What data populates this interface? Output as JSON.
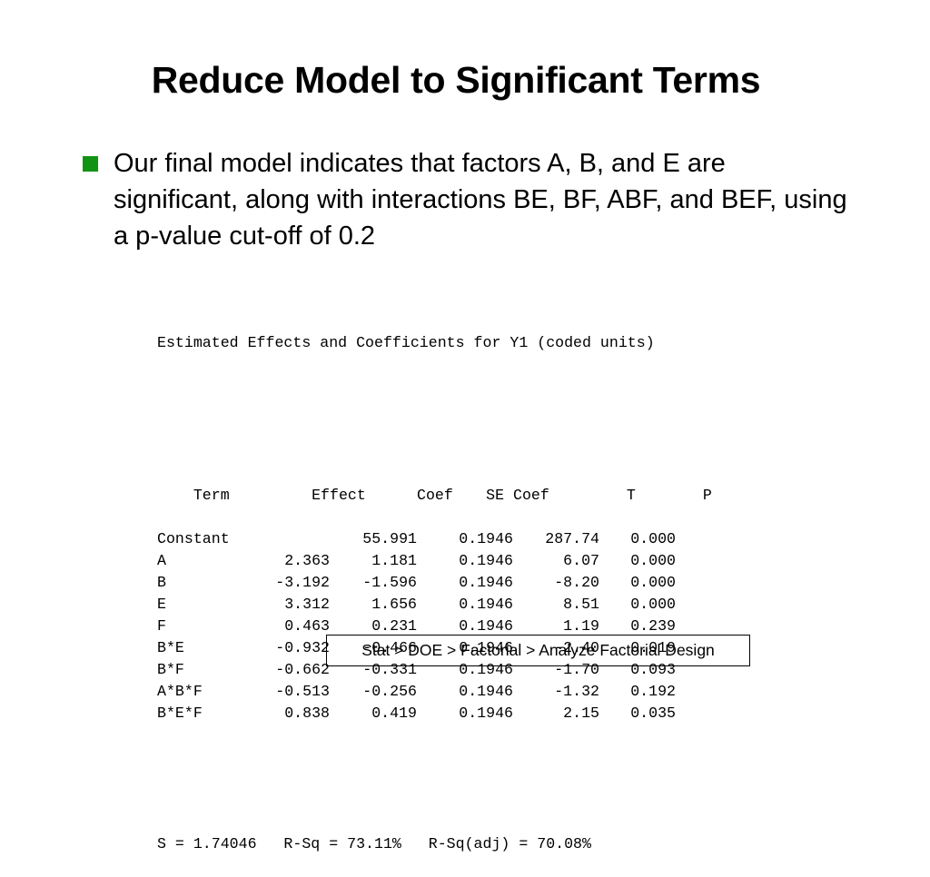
{
  "slide": {
    "title": "Reduce Model to Significant Terms",
    "bullet": "Our final model indicates that factors A, B, and E are significant, along with interactions BE, BF, ABF, and BEF, using a p-value cut-off of 0.2"
  },
  "output": {
    "heading": "Estimated Effects and Coefficients for Y1 (coded units)",
    "columns": {
      "term": "Term",
      "effect": "Effect",
      "coef": "Coef",
      "se_coef": "SE Coef",
      "t": "T",
      "p": "P"
    },
    "rows": [
      {
        "term": "Constant",
        "effect": "",
        "coef": "55.991",
        "se_coef": "0.1946",
        "t": "287.74",
        "p": "0.000"
      },
      {
        "term": "A",
        "effect": "2.363",
        "coef": "1.181",
        "se_coef": "0.1946",
        "t": "6.07",
        "p": "0.000"
      },
      {
        "term": "B",
        "effect": "-3.192",
        "coef": "-1.596",
        "se_coef": "0.1946",
        "t": "-8.20",
        "p": "0.000"
      },
      {
        "term": "E",
        "effect": "3.312",
        "coef": "1.656",
        "se_coef": "0.1946",
        "t": "8.51",
        "p": "0.000"
      },
      {
        "term": "F",
        "effect": "0.463",
        "coef": "0.231",
        "se_coef": "0.1946",
        "t": "1.19",
        "p": "0.239"
      },
      {
        "term": "B*E",
        "effect": "-0.932",
        "coef": "-0.466",
        "se_coef": "0.1946",
        "t": "-2.40",
        "p": "0.019"
      },
      {
        "term": "B*F",
        "effect": "-0.662",
        "coef": "-0.331",
        "se_coef": "0.1946",
        "t": "-1.70",
        "p": "0.093"
      },
      {
        "term": "A*B*F",
        "effect": "-0.513",
        "coef": "-0.256",
        "se_coef": "0.1946",
        "t": "-1.32",
        "p": "0.192"
      },
      {
        "term": "B*E*F",
        "effect": "0.838",
        "coef": "0.419",
        "se_coef": "0.1946",
        "t": "2.15",
        "p": "0.035"
      }
    ],
    "summary": "S = 1.74046   R-Sq = 73.11%   R-Sq(adj) = 70.08%"
  },
  "menu_path": "Stat > DOE > Factorial > Analyze Factorial Design",
  "colors": {
    "bullet": "#139313",
    "text": "#000000",
    "background": "#ffffff"
  }
}
